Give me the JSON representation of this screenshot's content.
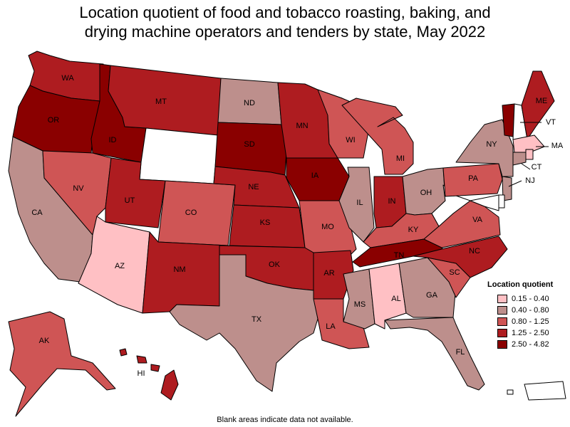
{
  "title_line1": "Location quotient of food and tobacco roasting, baking, and",
  "title_line2": "drying machine operators and tenders by state, May 2022",
  "legend": {
    "title": "Location quotient",
    "items": [
      {
        "label": "0.15 - 0.40",
        "color": "#ffc0c4"
      },
      {
        "label": "0.40 - 0.80",
        "color": "#bd8f8c"
      },
      {
        "label": "0.80 - 1.25",
        "color": "#cf5555"
      },
      {
        "label": "1.25 - 2.50",
        "color": "#ae1c20"
      },
      {
        "label": "2.50 - 4.82",
        "color": "#8a0000"
      }
    ]
  },
  "footnote": "Blank areas indicate data not available.",
  "states": {
    "WA": {
      "label": "WA",
      "class": 3
    },
    "OR": {
      "label": "OR",
      "class": 4
    },
    "CA": {
      "label": "CA",
      "class": 1
    },
    "ID": {
      "label": "ID",
      "class": 4
    },
    "NV": {
      "label": "NV",
      "class": 2
    },
    "MT": {
      "label": "MT",
      "class": 3
    },
    "WY": {
      "label": "",
      "class": -1
    },
    "UT": {
      "label": "UT",
      "class": 3
    },
    "AZ": {
      "label": "AZ",
      "class": 0
    },
    "CO": {
      "label": "CO",
      "class": 2
    },
    "NM": {
      "label": "NM",
      "class": 3
    },
    "ND": {
      "label": "ND",
      "class": 1
    },
    "SD": {
      "label": "SD",
      "class": 4
    },
    "NE": {
      "label": "NE",
      "class": 3
    },
    "KS": {
      "label": "KS",
      "class": 3
    },
    "OK": {
      "label": "OK",
      "class": 3
    },
    "TX": {
      "label": "TX",
      "class": 1
    },
    "MN": {
      "label": "MN",
      "class": 3
    },
    "IA": {
      "label": "IA",
      "class": 4
    },
    "MO": {
      "label": "MO",
      "class": 2
    },
    "AR": {
      "label": "AR",
      "class": 3
    },
    "LA": {
      "label": "LA",
      "class": 2
    },
    "WI": {
      "label": "WI",
      "class": 2
    },
    "IL": {
      "label": "IL",
      "class": 1
    },
    "MI": {
      "label": "MI",
      "class": 2
    },
    "IN": {
      "label": "IN",
      "class": 3
    },
    "OH": {
      "label": "OH",
      "class": 1
    },
    "KY": {
      "label": "KY",
      "class": 2
    },
    "TN": {
      "label": "TN",
      "class": 4
    },
    "MS": {
      "label": "MS",
      "class": 1
    },
    "AL": {
      "label": "AL",
      "class": 0
    },
    "GA": {
      "label": "GA",
      "class": 1
    },
    "FL": {
      "label": "FL",
      "class": 1
    },
    "SC": {
      "label": "SC",
      "class": 2
    },
    "NC": {
      "label": "NC",
      "class": 3
    },
    "VA": {
      "label": "VA",
      "class": 2
    },
    "WV": {
      "label": "",
      "class": -1
    },
    "PA": {
      "label": "PA",
      "class": 2
    },
    "NY": {
      "label": "NY",
      "class": 1
    },
    "VT": {
      "label": "VT",
      "class": 4
    },
    "NH": {
      "label": "",
      "class": -1
    },
    "ME": {
      "label": "ME",
      "class": 3
    },
    "MA": {
      "label": "MA",
      "class": 0
    },
    "CT": {
      "label": "CT",
      "class": 1
    },
    "RI": {
      "label": "",
      "class": 0
    },
    "NJ": {
      "label": "NJ",
      "class": 1
    },
    "DE": {
      "label": "",
      "class": -1
    },
    "MD": {
      "label": "",
      "class": -1
    },
    "AK": {
      "label": "AK",
      "class": 2
    },
    "HI": {
      "label": "HI",
      "class": 3
    },
    "PR": {
      "label": "",
      "class": -1
    }
  }
}
